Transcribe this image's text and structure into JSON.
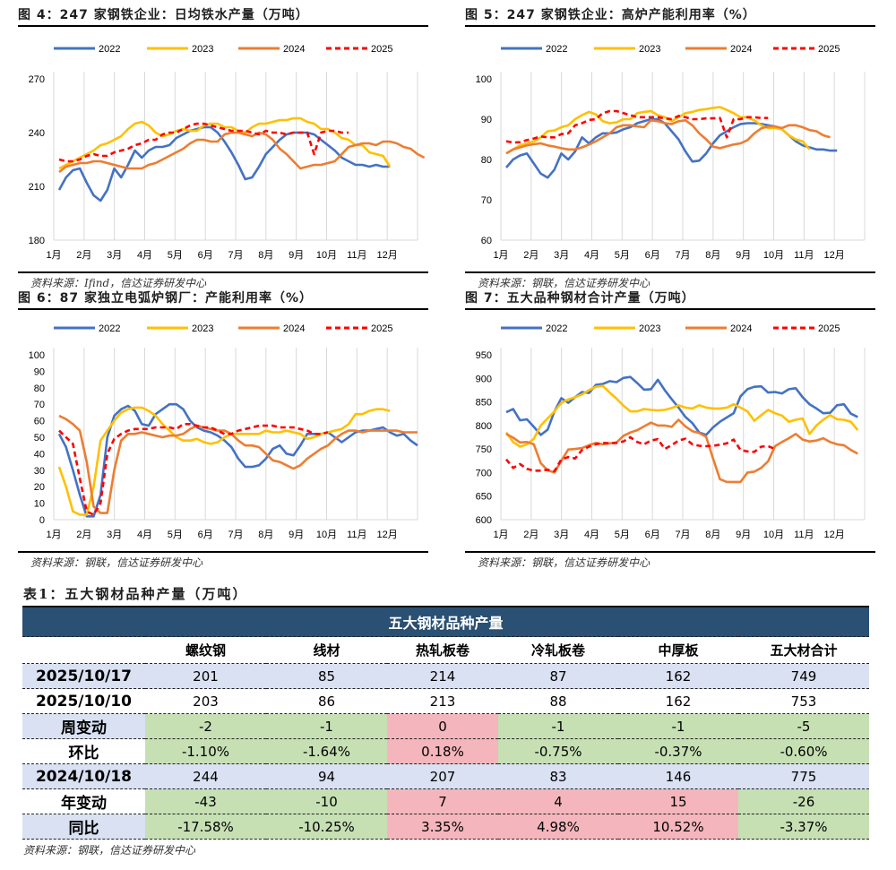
{
  "colors": {
    "y2022": "#4472c4",
    "y2023": "#ffc000",
    "y2024": "#ed7d31",
    "y2025": "#ff0000",
    "table_header": "#2a5073",
    "row_blue": "#d9e1f2",
    "cell_green": "#c6e0b4",
    "cell_red": "#f4b6bc"
  },
  "chart_data": [
    {
      "id": "fig4",
      "type": "line",
      "title": "图 4：247 家钢铁企业：日均铁水产量（万吨）",
      "source": "资料来源：Ifind，信达证券研发中心",
      "xlabel": "",
      "ylabel": "",
      "categories": [
        "1月",
        "2月",
        "3月",
        "4月",
        "5月",
        "6月",
        "7月",
        "8月",
        "9月",
        "10月",
        "11月",
        "12月"
      ],
      "ylim": [
        180,
        270
      ],
      "yticks": [
        180,
        210,
        240,
        270
      ],
      "grid": "vertical",
      "legend": "top",
      "series": [
        {
          "name": "2022",
          "style": "solid",
          "values": [
            208,
            215,
            219,
            220,
            212,
            205,
            202,
            208,
            220,
            215,
            222,
            230,
            226,
            230,
            232,
            232,
            233,
            237,
            239,
            241,
            242,
            243,
            243,
            240,
            235,
            229,
            222,
            214,
            215,
            221,
            228,
            232,
            236,
            239,
            240,
            240,
            240,
            239,
            236,
            233,
            230,
            226,
            224,
            222,
            222,
            221,
            222,
            221,
            221
          ]
        },
        {
          "name": "2023",
          "style": "solid",
          "values": [
            220,
            222,
            224,
            226,
            228,
            230,
            233,
            234,
            236,
            238,
            242,
            245,
            246,
            244,
            240,
            238,
            239,
            241,
            242,
            241,
            241,
            244,
            245,
            245,
            243,
            243,
            241,
            240,
            243,
            245,
            245,
            246,
            247,
            247,
            248,
            248,
            246,
            245,
            242,
            242,
            240,
            237,
            236,
            233,
            233,
            229,
            228,
            227,
            221
          ]
        },
        {
          "name": "2024",
          "style": "solid",
          "values": [
            218,
            221,
            222,
            223,
            223,
            224,
            224,
            223,
            222,
            221,
            220,
            220,
            220,
            222,
            223,
            225,
            227,
            229,
            231,
            234,
            236,
            236,
            235,
            235,
            239,
            240,
            240,
            239,
            238,
            240,
            239,
            236,
            231,
            228,
            224,
            220,
            221,
            222,
            222,
            223,
            224,
            228,
            232,
            233,
            234,
            234,
            233,
            235,
            235,
            234,
            232,
            231,
            228,
            226
          ]
        },
        {
          "name": "2025",
          "style": "dashed",
          "values": [
            225,
            224,
            224,
            225,
            227,
            228,
            227,
            227,
            229,
            230,
            231,
            233,
            234,
            236,
            236,
            239,
            240,
            240,
            242,
            244,
            245,
            245,
            244,
            243,
            242,
            241,
            241,
            241,
            240,
            239,
            241,
            240,
            240,
            239,
            240,
            240,
            240,
            228,
            240,
            241,
            241,
            240,
            240
          ]
        }
      ]
    },
    {
      "id": "fig5",
      "type": "line",
      "title": "图 5：247 家钢铁企业：高炉产能利用率（%）",
      "source": "资料来源：钢联，信达证券研发中心",
      "xlabel": "",
      "ylabel": "",
      "categories": [
        "1月",
        "2月",
        "3月",
        "4月",
        "5月",
        "6月",
        "7月",
        "8月",
        "9月",
        "10月",
        "11月",
        "12月"
      ],
      "ylim": [
        60,
        100
      ],
      "yticks": [
        60,
        70,
        80,
        90,
        100
      ],
      "grid": "vertical",
      "legend": "top",
      "series": [
        {
          "name": "2022",
          "style": "solid",
          "values": [
            78,
            80,
            81,
            81.5,
            79,
            76.5,
            75.5,
            77.5,
            81.5,
            80,
            82,
            85.5,
            84,
            85.5,
            86.5,
            86.5,
            86.7,
            87.5,
            88,
            89,
            89.5,
            90,
            90,
            89,
            87,
            85,
            82,
            79.5,
            79.7,
            81.5,
            84,
            86,
            87,
            88,
            88.8,
            89,
            89,
            88.8,
            88.5,
            88.2,
            87.5,
            86,
            84.5,
            83.5,
            83,
            82.5,
            82.5,
            82.2,
            82.2
          ]
        },
        {
          "name": "2023",
          "style": "solid",
          "values": [
            81.5,
            82.5,
            83.5,
            84,
            84.5,
            85.5,
            87,
            87.2,
            88,
            88.5,
            90,
            91,
            91.8,
            91.2,
            89.5,
            89,
            89.2,
            90,
            90,
            91.5,
            91.8,
            92,
            91,
            90.5,
            89.5,
            90.5,
            91.5,
            91.8,
            92.3,
            92.5,
            92.8,
            93,
            92.3,
            91.5,
            90.5,
            90.5,
            89.7,
            88.5,
            87.8,
            87.8,
            87.5,
            86,
            85,
            84.5,
            82.5
          ]
        },
        {
          "name": "2024",
          "style": "solid",
          "values": [
            81.5,
            82.5,
            83,
            83.5,
            83.8,
            84,
            83.5,
            83.2,
            82.8,
            82.5,
            82.5,
            83,
            83.7,
            84.5,
            85.5,
            86.5,
            88,
            88.5,
            88.5,
            88.2,
            88,
            89.7,
            89.5,
            89,
            88.8,
            89.5,
            89.7,
            88.5,
            86.5,
            85,
            83.2,
            82.8,
            83.3,
            83.7,
            84,
            84.8,
            86.5,
            87.7,
            88.2,
            88.2,
            87.8,
            88.5,
            88.5,
            88,
            87.3,
            87,
            86,
            85.5
          ]
        },
        {
          "name": "2025",
          "style": "dashed",
          "values": [
            84.5,
            84.2,
            84.3,
            84.8,
            85.2,
            85.7,
            85.5,
            85.5,
            86.3,
            86.5,
            88.5,
            89,
            89.8,
            90,
            91.5,
            92,
            92,
            91.5,
            91,
            90.5,
            90.5,
            90.5,
            90.5,
            90.2,
            90,
            90.8,
            90.5,
            90,
            90,
            90.2,
            90.2,
            90.3,
            85.5,
            90,
            90,
            90.5,
            90.5,
            90.3,
            90.3
          ]
        }
      ]
    },
    {
      "id": "fig6",
      "type": "line",
      "title": "图 6：87 家独立电弧炉钢厂：产能利用率（%）",
      "source": "资料来源：钢联，信达证券研发中心",
      "xlabel": "",
      "ylabel": "",
      "categories": [
        "1月",
        "2月",
        "3月",
        "4月",
        "5月",
        "6月",
        "7月",
        "8月",
        "9月",
        "10月",
        "11月",
        "12月"
      ],
      "ylim": [
        0,
        100
      ],
      "yticks": [
        0,
        10,
        20,
        30,
        40,
        50,
        60,
        70,
        80,
        90,
        100
      ],
      "grid": "vertical",
      "legend": "top",
      "series": [
        {
          "name": "2022",
          "style": "solid",
          "values": [
            52,
            44,
            30,
            15,
            2,
            2,
            15,
            50,
            63,
            67,
            69,
            66,
            58,
            57,
            64,
            67,
            70,
            70,
            67,
            60,
            56,
            54,
            53,
            51,
            48,
            44,
            37,
            32,
            32,
            33,
            37,
            43,
            45,
            40,
            39,
            45,
            52,
            52,
            52,
            53,
            50,
            47,
            50,
            53,
            54,
            54,
            55,
            56,
            53,
            51,
            52,
            48,
            45
          ]
        },
        {
          "name": "2023",
          "style": "solid",
          "values": [
            32,
            20,
            5,
            3,
            3,
            20,
            48,
            54,
            60,
            65,
            67,
            68,
            68,
            66,
            63,
            58,
            54,
            50,
            48,
            48,
            49,
            47,
            46,
            47,
            50,
            52,
            52,
            52,
            52,
            52,
            54,
            53,
            53,
            54,
            53,
            52,
            49,
            50,
            52,
            53,
            54,
            55,
            58,
            64,
            64,
            66,
            67,
            67,
            66
          ]
        },
        {
          "name": "2024",
          "style": "solid",
          "values": [
            63,
            61,
            58,
            54,
            35,
            8,
            4,
            4,
            30,
            48,
            52,
            52,
            53,
            52,
            51,
            50,
            51,
            51,
            52,
            55,
            57,
            56,
            55,
            54,
            54,
            52,
            48,
            45,
            45,
            44,
            40,
            36,
            35,
            33,
            31,
            33,
            37,
            40,
            43,
            45,
            49,
            52,
            54,
            54,
            53,
            54,
            54,
            54,
            54,
            54,
            53,
            53,
            53
          ]
        },
        {
          "name": "2025",
          "style": "dashed",
          "values": [
            54,
            50,
            46,
            25,
            5,
            3,
            10,
            40,
            49,
            52,
            54,
            55,
            55,
            55,
            56,
            56,
            56,
            55,
            58,
            58,
            57,
            56,
            56,
            54,
            52,
            52,
            54,
            55,
            56,
            57,
            57,
            57,
            56,
            56,
            56,
            55,
            54,
            52,
            52,
            53
          ]
        }
      ]
    },
    {
      "id": "fig7",
      "type": "line",
      "title": "图 7：五大品种钢材合计产量（万吨）",
      "source": "资料来源：钢联，信达证券研发中心",
      "xlabel": "",
      "ylabel": "",
      "categories": [
        "1月",
        "2月",
        "3月",
        "4月",
        "5月",
        "6月",
        "7月",
        "8月",
        "9月",
        "10月",
        "11月",
        "12月"
      ],
      "ylim": [
        600,
        950
      ],
      "yticks": [
        600,
        650,
        700,
        750,
        800,
        850,
        900,
        950
      ],
      "grid": "vertical",
      "legend": "top",
      "series": [
        {
          "name": "2022",
          "style": "solid",
          "values": [
            828,
            835,
            811,
            813,
            797,
            780,
            791,
            830,
            858,
            848,
            860,
            871,
            869,
            886,
            888,
            894,
            892,
            901,
            903,
            890,
            876,
            877,
            897,
            875,
            856,
            838,
            818,
            805,
            785,
            780,
            796,
            808,
            817,
            826,
            862,
            877,
            882,
            883,
            870,
            871,
            868,
            877,
            879,
            860,
            845,
            836,
            826,
            827,
            843,
            845,
            825,
            818
          ]
        },
        {
          "name": "2023",
          "style": "solid",
          "values": [
            785,
            765,
            755,
            760,
            772,
            800,
            815,
            830,
            848,
            855,
            860,
            866,
            875,
            882,
            884,
            870,
            857,
            842,
            830,
            830,
            835,
            833,
            832,
            833,
            837,
            843,
            838,
            836,
            843,
            838,
            836,
            836,
            838,
            845,
            838,
            830,
            810,
            822,
            833,
            826,
            821,
            808,
            812,
            815,
            782,
            800,
            812,
            822,
            813,
            812,
            808,
            790
          ]
        },
        {
          "name": "2024",
          "style": "solid",
          "values": [
            782,
            774,
            764,
            765,
            760,
            720,
            705,
            700,
            725,
            749,
            750,
            752,
            758,
            763,
            760,
            762,
            764,
            778,
            785,
            790,
            798,
            806,
            800,
            800,
            797,
            812,
            798,
            788,
            784,
            776,
            730,
            686,
            680,
            680,
            680,
            700,
            702,
            710,
            724,
            756,
            765,
            773,
            782,
            770,
            766,
            768,
            773,
            765,
            760,
            758,
            748,
            740
          ]
        },
        {
          "name": "2025",
          "style": "dashed",
          "values": [
            728,
            710,
            718,
            708,
            704,
            704,
            706,
            703,
            728,
            733,
            730,
            748,
            755,
            760,
            763,
            762,
            763,
            766,
            775,
            765,
            760,
            768,
            771,
            750,
            758,
            768,
            772,
            760,
            757,
            756,
            757,
            759,
            762,
            770,
            748,
            745,
            744,
            755,
            756,
            750
          ]
        }
      ]
    }
  ],
  "table": {
    "title": "表1：五大钢材品种产量（万吨）",
    "header_band": "五大钢材品种产量",
    "columns": [
      "",
      "螺纹钢",
      "线材",
      "热轧板卷",
      "冷轧板卷",
      "中厚板",
      "五大材合计"
    ],
    "rows": [
      {
        "label": "2025/10/17",
        "cells": [
          "201",
          "85",
          "214",
          "87",
          "162",
          "749"
        ],
        "colors": [
          "blue",
          "blue",
          "blue",
          "blue",
          "blue",
          "blue"
        ],
        "label_bg": "blue"
      },
      {
        "label": "2025/10/10",
        "cells": [
          "203",
          "86",
          "213",
          "88",
          "162",
          "753"
        ],
        "colors": [
          "",
          "",
          "",
          "",
          "",
          ""
        ],
        "label_bg": ""
      },
      {
        "label": "周变动",
        "cells": [
          "-2",
          "-1",
          "0",
          "-1",
          "-1",
          "-5"
        ],
        "colors": [
          "green",
          "green",
          "red",
          "green",
          "green",
          "green"
        ],
        "label_bg": "blue"
      },
      {
        "label": "环比",
        "cells": [
          "-1.10%",
          "-1.64%",
          "0.18%",
          "-0.75%",
          "-0.37%",
          "-0.60%"
        ],
        "colors": [
          "green",
          "green",
          "red",
          "green",
          "green",
          "green"
        ],
        "label_bg": ""
      },
      {
        "label": "2024/10/18",
        "cells": [
          "244",
          "94",
          "207",
          "83",
          "146",
          "775"
        ],
        "colors": [
          "blue",
          "blue",
          "blue",
          "blue",
          "blue",
          "blue"
        ],
        "label_bg": "blue"
      },
      {
        "label": "年变动",
        "cells": [
          "-43",
          "-10",
          "7",
          "4",
          "15",
          "-26"
        ],
        "colors": [
          "green",
          "green",
          "red",
          "red",
          "red",
          "green"
        ],
        "label_bg": ""
      },
      {
        "label": "同比",
        "cells": [
          "-17.58%",
          "-10.25%",
          "3.35%",
          "4.98%",
          "10.52%",
          "-3.37%"
        ],
        "colors": [
          "green",
          "green",
          "red",
          "red",
          "red",
          "green"
        ],
        "label_bg": "blue"
      }
    ],
    "source": "资料来源：钢联，信达证券研发中心"
  }
}
